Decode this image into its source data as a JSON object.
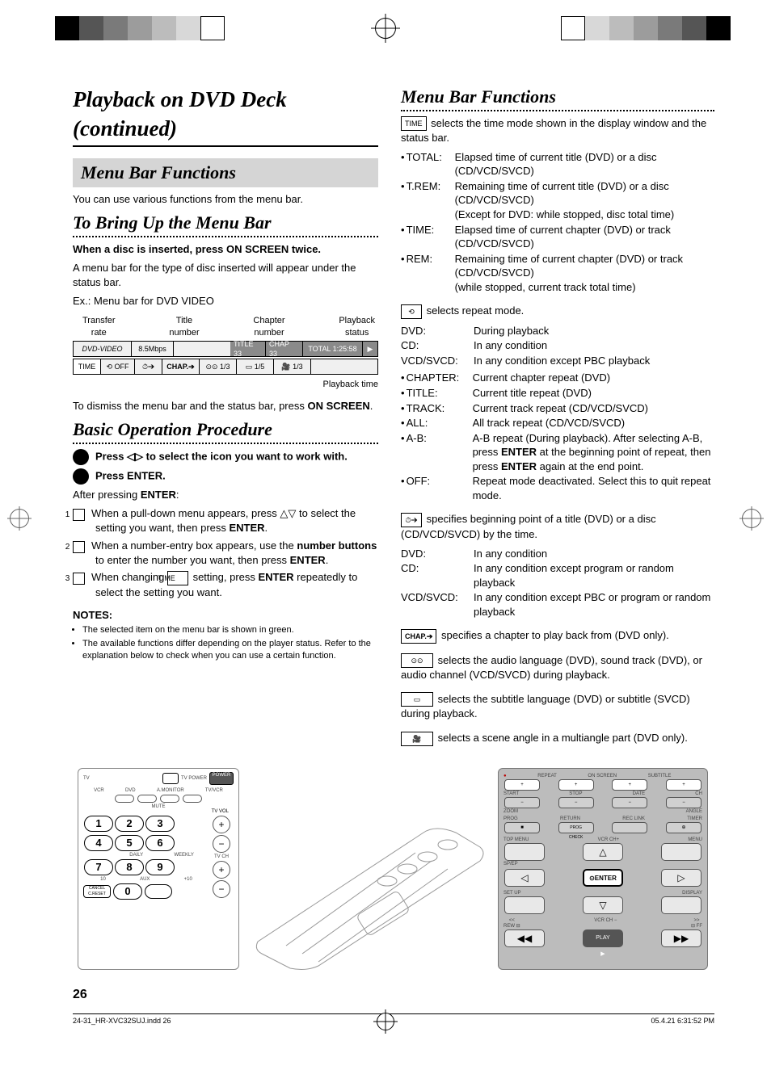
{
  "marks": {
    "colors": [
      "#000000",
      "#555555",
      "#7a7a7a",
      "#9c9c9c",
      "#bcbcbc",
      "#d8d8d8",
      "#ffffff"
    ]
  },
  "left": {
    "main_title": "Playback on DVD Deck (continued)",
    "menu_bar_heading": "Menu Bar Functions",
    "menu_bar_intro": "You can use various functions from the menu bar.",
    "bringup_heading": "To Bring Up the Menu Bar",
    "bringup_bold": "When a disc is inserted, press ON SCREEN twice.",
    "bringup_body": "A menu bar for the type of disc inserted will appear under the status bar.",
    "bringup_example": "Ex.: Menu bar for DVD VIDEO",
    "menu_diagram": {
      "labels": [
        "Transfer\nrate",
        "Title\nnumber",
        "Chapter\nnumber",
        "Playback\nstatus"
      ],
      "row1": [
        "DVD-VIDEO",
        "8.5Mbps",
        "TITLE 33",
        "CHAP 33",
        "TOTAL 1:25:58",
        "▶"
      ],
      "row2": [
        "TIME",
        "⟲ OFF",
        "⏱➔",
        "CHAP.➔",
        "⊙⊙ 1/3",
        "▭ 1/5",
        "🎥 1/3"
      ],
      "caption": "Playback time"
    },
    "dismiss_text_a": "To dismiss the menu bar and the status bar, press ",
    "dismiss_text_b": "ON SCREEN",
    "dismiss_text_c": ".",
    "basic_heading": "Basic Operation Procedure",
    "step1_a": "Press ",
    "step1_b": " to select the icon you want to work with.",
    "step2": "Press ENTER.",
    "after_enter": "After pressing ",
    "after_enter_bold": "ENTER",
    "after_enter_tail": ":",
    "sub1": "When a pull-down menu appears, press △▽ to select the setting you want, then press ENTER.",
    "sub2": "When a number-entry box appears, use the number buttons to enter the number you want, then press ENTER.",
    "sub3_a": "When changing ",
    "sub3_b": "TIME",
    "sub3_c": " setting, press ENTER repeatedly to select the setting you want.",
    "notes_title": "NOTES:",
    "notes": [
      "The selected item on the menu bar is shown in green.",
      "The available functions differ depending on the player status. Refer to the explanation below to check when you can use a certain function."
    ]
  },
  "right": {
    "heading": "Menu Bar Functions",
    "time_icon": "TIME",
    "time_intro": " selects the time mode shown in the display window and the status bar.",
    "time_list": [
      {
        "k": "TOTAL:",
        "v": "Elapsed time of current title (DVD) or a disc (CD/VCD/SVCD)"
      },
      {
        "k": "T.REM:",
        "v": "Remaining time of current title (DVD) or a disc (CD/VCD/SVCD)\n(Except for DVD: while stopped, disc total time)"
      },
      {
        "k": "TIME:",
        "v": "Elapsed time of current chapter (DVD) or track (CD/VCD/SVCD)"
      },
      {
        "k": "REM:",
        "v": "Remaining time of current chapter (DVD) or track (CD/VCD/SVCD)\n(while stopped, current track total time)"
      }
    ],
    "repeat_icon": "⟲",
    "repeat_intro": " selects repeat mode.",
    "repeat_list": [
      {
        "k": "DVD:",
        "v": "During playback"
      },
      {
        "k": "CD:",
        "v": "In any condition"
      },
      {
        "k": "VCD/SVCD:",
        "v": "In any condition except PBC playback"
      }
    ],
    "repeat_sub": [
      {
        "k": "CHAPTER:",
        "v": "Current chapter repeat (DVD)"
      },
      {
        "k": "TITLE:",
        "v": "Current title repeat (DVD)"
      },
      {
        "k": "TRACK:",
        "v": "Current track repeat (CD/VCD/SVCD)"
      },
      {
        "k": "ALL:",
        "v": "All track repeat (CD/VCD/SVCD)"
      },
      {
        "k": "A-B:",
        "v": "A-B repeat (During playback). After selecting A-B, press ENTER at the beginning point of repeat, then press ENTER again at the end point."
      },
      {
        "k": "OFF:",
        "v": "Repeat mode deactivated. Select this to quit repeat mode."
      }
    ],
    "clock_icon": "⏱➔",
    "clock_intro": " specifies beginning point of a title (DVD) or a disc (CD/VCD/SVCD) by the time.",
    "clock_list": [
      {
        "k": "DVD:",
        "v": "In any condition"
      },
      {
        "k": "CD:",
        "v": "In any condition except program or random playback"
      },
      {
        "k": "VCD/SVCD:",
        "v": "In any condition except PBC or program or random playback"
      }
    ],
    "chap_icon": "CHAP.➔",
    "chap_intro": " specifies a chapter to play back from (DVD only).",
    "audio_icon": "⊙⊙",
    "audio_intro": " selects the audio language (DVD), sound track (DVD), or audio channel (VCD/SVCD) during playback.",
    "sub_icon": "▭",
    "sub_intro": " selects the subtitle language (DVD) or subtitle (SVCD) during playback.",
    "angle_icon": "🎥",
    "angle_intro": " selects a scene angle in a multiangle part (DVD only)."
  },
  "remote": {
    "left_labels": {
      "top": [
        "TV",
        "TV POWER",
        "POWER",
        "VCR",
        "DVD",
        "A.MONITOR",
        "TV/VCR",
        "MUTE",
        "TV VOL",
        "TV CH",
        "DAILY",
        "WEEKLY",
        "AUX"
      ],
      "nums": [
        "1",
        "2",
        "3",
        "4",
        "5",
        "6",
        "7",
        "8",
        "9",
        "0"
      ],
      "extra": [
        "10",
        "+10",
        "CANCEL\nC.RESET"
      ]
    },
    "right_labels": [
      "REPEAT",
      "ON SCREEN",
      "SUBTITLE",
      "START",
      "STOP",
      "DATE",
      "CH",
      "ZOOM",
      "ANGLE",
      "PROG",
      "RETURN",
      "REC LINK",
      "TIMER",
      "PROG CHECK",
      "TOP MENU",
      "VCR CH+",
      "MENU",
      "SP/EP",
      "ENTER",
      "SET UP",
      "DISPLAY",
      "VCR CH −",
      "REW",
      "PLAY",
      "FF"
    ]
  },
  "page_number": "26",
  "footer": {
    "left": "24-31_HR-XVC32SUJ.indd   26",
    "right": "05.4.21   6:31:52 PM"
  }
}
